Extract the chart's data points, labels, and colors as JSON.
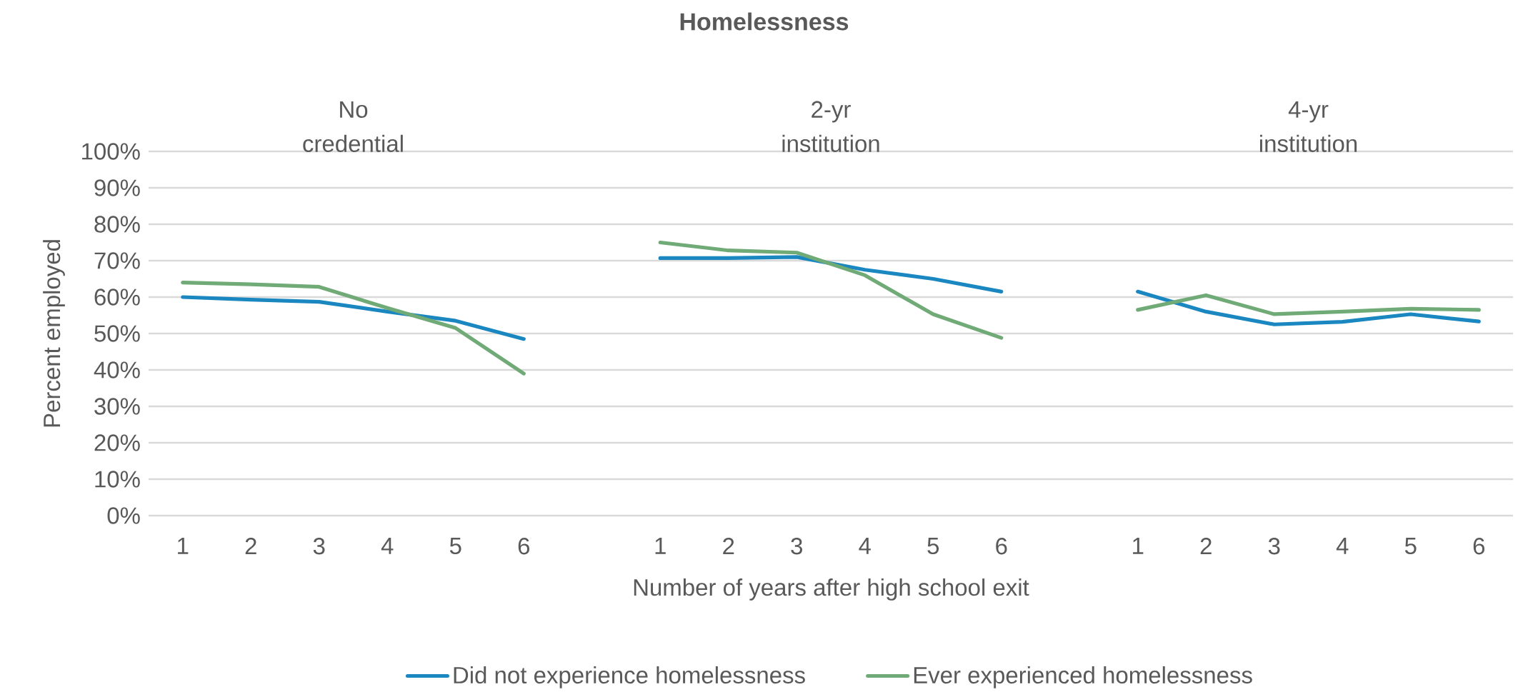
{
  "chart_data": {
    "type": "line",
    "title": "Homelessness",
    "xlabel": "Number of years after high school exit",
    "ylabel": "Percent employed",
    "categories": [
      "1",
      "2",
      "3",
      "4",
      "5",
      "6",
      null,
      "1",
      "2",
      "3",
      "4",
      "5",
      "6",
      null,
      "1",
      "2",
      "3",
      "4",
      "5",
      "6"
    ],
    "series": [
      {
        "name": "Did not experience homelessness",
        "color": "#1a87c0",
        "values": [
          60,
          59.3,
          58.7,
          56,
          53.5,
          48.5,
          null,
          70.7,
          70.7,
          71,
          67.5,
          65,
          61.5,
          null,
          61.5,
          56,
          52.5,
          53.2,
          55.3,
          53.3
        ]
      },
      {
        "name": "Ever experienced homelessness",
        "color": "#70aa76",
        "values": [
          64,
          63.5,
          62.8,
          57,
          51.5,
          39,
          null,
          75,
          72.8,
          72.2,
          66,
          55.3,
          48.8,
          null,
          56.5,
          60.5,
          55.3,
          56,
          56.8,
          56.5
        ]
      }
    ],
    "annotations": [
      "No credential",
      "2-yr institution",
      "4-yr institution"
    ],
    "ylim": [
      0,
      100
    ],
    "yticks": [
      {
        "value": 0,
        "label": "0%"
      },
      {
        "value": 10,
        "label": "10%"
      },
      {
        "value": 20,
        "label": "20%"
      },
      {
        "value": 30,
        "label": "30%"
      },
      {
        "value": 40,
        "label": "40%"
      },
      {
        "value": 50,
        "label": "50%"
      },
      {
        "value": 60,
        "label": "60%"
      },
      {
        "value": 70,
        "label": "70%"
      },
      {
        "value": 80,
        "label": "80%"
      },
      {
        "value": 90,
        "label": "90%"
      },
      {
        "value": 100,
        "label": "100%"
      }
    ],
    "grid": "y",
    "legend": "bottom",
    "marker": "none",
    "line_style": "solid"
  }
}
